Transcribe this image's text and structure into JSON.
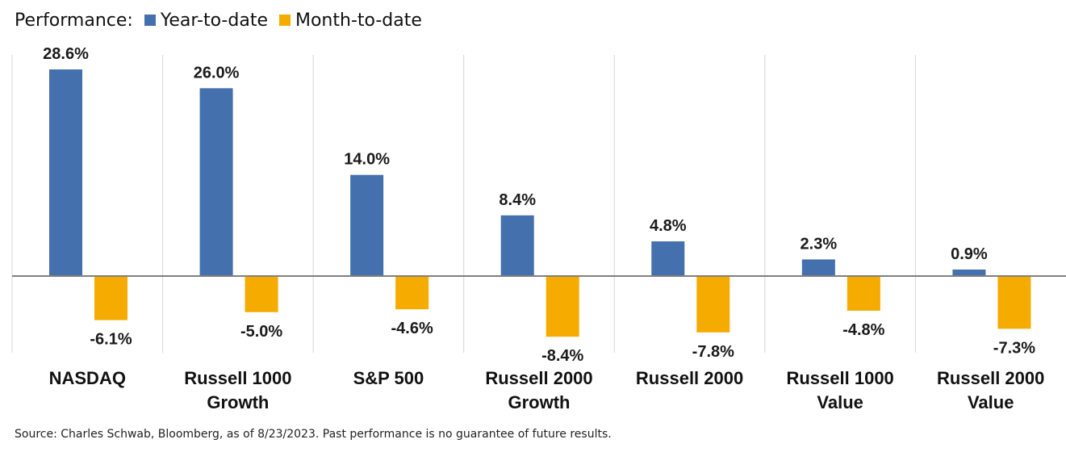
{
  "legend": {
    "prefix": "Performance:",
    "items": [
      {
        "label": "Year-to-date",
        "color": "#4470ad"
      },
      {
        "label": "Month-to-date",
        "color": "#f5ab00"
      }
    ]
  },
  "chart_data": {
    "type": "bar",
    "title": "",
    "xlabel": "",
    "ylabel": "",
    "value_suffix": "%",
    "ylim": [
      -11,
      33.5
    ],
    "grid": "vertical separators",
    "legend_position": "top-left",
    "categories": [
      [
        "NASDAQ"
      ],
      [
        "Russell 1000",
        "Growth"
      ],
      [
        "S&P 500"
      ],
      [
        "Russell 2000",
        "Growth"
      ],
      [
        "Russell 2000"
      ],
      [
        "Russell 1000",
        "Value"
      ],
      [
        "Russell 2000",
        "Value"
      ]
    ],
    "series": [
      {
        "name": "Year-to-date",
        "color": "#4470ad",
        "values": [
          28.6,
          26.0,
          14.0,
          8.4,
          4.8,
          2.3,
          0.9
        ]
      },
      {
        "name": "Month-to-date",
        "color": "#f5ab00",
        "values": [
          -6.1,
          -5.0,
          -4.6,
          -8.4,
          -7.8,
          -4.8,
          -7.3
        ]
      }
    ]
  },
  "footer": {
    "source": "Source: Charles Schwab, Bloomberg, as of 8/23/2023.  Past performance is no guarantee of future results."
  }
}
